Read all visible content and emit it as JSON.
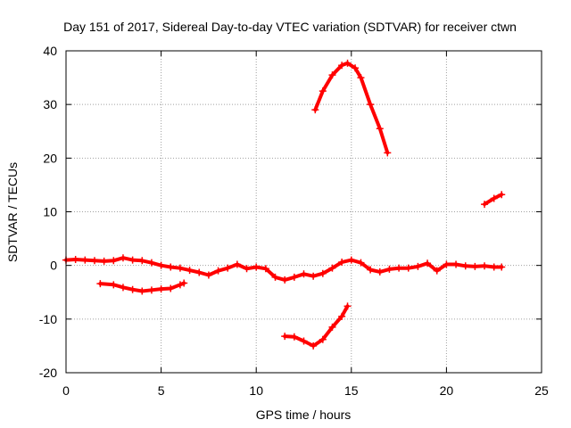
{
  "chart_data": {
    "type": "scatter",
    "title": "Day 151 of 2017, Sidereal Day-to-day VTEC variation (SDTVAR) for receiver ctwn",
    "xlabel": "GPS time / hours",
    "ylabel": "SDTVAR / TECUs",
    "xlim": [
      0,
      25
    ],
    "ylim": [
      -20,
      40
    ],
    "xticks": [
      0,
      5,
      10,
      15,
      20,
      25
    ],
    "yticks": [
      -20,
      -10,
      0,
      10,
      20,
      30,
      40
    ],
    "grid": true,
    "marker": "+",
    "color": "#ff0000",
    "series": [
      {
        "name": "track-1",
        "points": [
          [
            0.0,
            1.0
          ],
          [
            0.5,
            1.1
          ],
          [
            1.0,
            1.0
          ],
          [
            1.5,
            0.9
          ],
          [
            2.0,
            0.8
          ],
          [
            2.5,
            0.9
          ],
          [
            3.0,
            1.4
          ],
          [
            3.5,
            1.0
          ],
          [
            4.0,
            0.9
          ],
          [
            4.5,
            0.5
          ],
          [
            5.0,
            0.0
          ],
          [
            5.5,
            -0.3
          ],
          [
            6.0,
            -0.5
          ],
          [
            6.5,
            -0.9
          ],
          [
            7.0,
            -1.3
          ],
          [
            7.5,
            -1.8
          ],
          [
            8.0,
            -1.0
          ],
          [
            8.5,
            -0.5
          ],
          [
            9.0,
            0.2
          ],
          [
            9.5,
            -0.6
          ],
          [
            10.0,
            -0.3
          ],
          [
            10.5,
            -0.6
          ],
          [
            11.0,
            -2.2
          ],
          [
            11.5,
            -2.7
          ],
          [
            12.0,
            -2.2
          ],
          [
            12.5,
            -1.6
          ],
          [
            13.0,
            -2.0
          ],
          [
            13.5,
            -1.5
          ],
          [
            14.0,
            -0.5
          ],
          [
            14.5,
            0.6
          ],
          [
            15.0,
            1.0
          ],
          [
            15.5,
            0.5
          ],
          [
            16.0,
            -0.8
          ],
          [
            16.5,
            -1.2
          ],
          [
            17.0,
            -0.7
          ],
          [
            17.5,
            -0.5
          ],
          [
            18.0,
            -0.5
          ],
          [
            18.5,
            -0.2
          ],
          [
            19.0,
            0.4
          ],
          [
            19.5,
            -1.0
          ],
          [
            20.0,
            0.2
          ],
          [
            20.5,
            0.2
          ],
          [
            21.0,
            -0.1
          ],
          [
            21.5,
            -0.2
          ],
          [
            22.0,
            -0.1
          ],
          [
            22.5,
            -0.3
          ],
          [
            22.9,
            -0.3
          ]
        ]
      },
      {
        "name": "track-2",
        "points": [
          [
            1.8,
            -3.4
          ],
          [
            2.5,
            -3.6
          ],
          [
            3.0,
            -4.1
          ],
          [
            3.5,
            -4.5
          ],
          [
            4.0,
            -4.8
          ],
          [
            4.5,
            -4.6
          ],
          [
            5.0,
            -4.4
          ],
          [
            5.5,
            -4.3
          ],
          [
            6.0,
            -3.6
          ],
          [
            6.2,
            -3.3
          ]
        ]
      },
      {
        "name": "track-3",
        "points": [
          [
            11.5,
            -13.2
          ],
          [
            12.0,
            -13.3
          ],
          [
            12.5,
            -14.1
          ],
          [
            13.0,
            -15.0
          ],
          [
            13.5,
            -13.8
          ],
          [
            14.0,
            -11.5
          ],
          [
            14.5,
            -9.5
          ],
          [
            14.8,
            -7.6
          ]
        ]
      },
      {
        "name": "track-4",
        "points": [
          [
            13.1,
            29.0
          ],
          [
            13.5,
            32.5
          ],
          [
            14.0,
            35.5
          ],
          [
            14.5,
            37.3
          ],
          [
            14.8,
            37.7
          ],
          [
            15.2,
            36.8
          ],
          [
            15.5,
            35.0
          ],
          [
            16.0,
            30.0
          ],
          [
            16.5,
            25.5
          ],
          [
            16.9,
            21.0
          ]
        ]
      },
      {
        "name": "track-5",
        "points": [
          [
            22.0,
            11.4
          ],
          [
            22.5,
            12.5
          ],
          [
            22.9,
            13.2
          ]
        ]
      }
    ]
  }
}
